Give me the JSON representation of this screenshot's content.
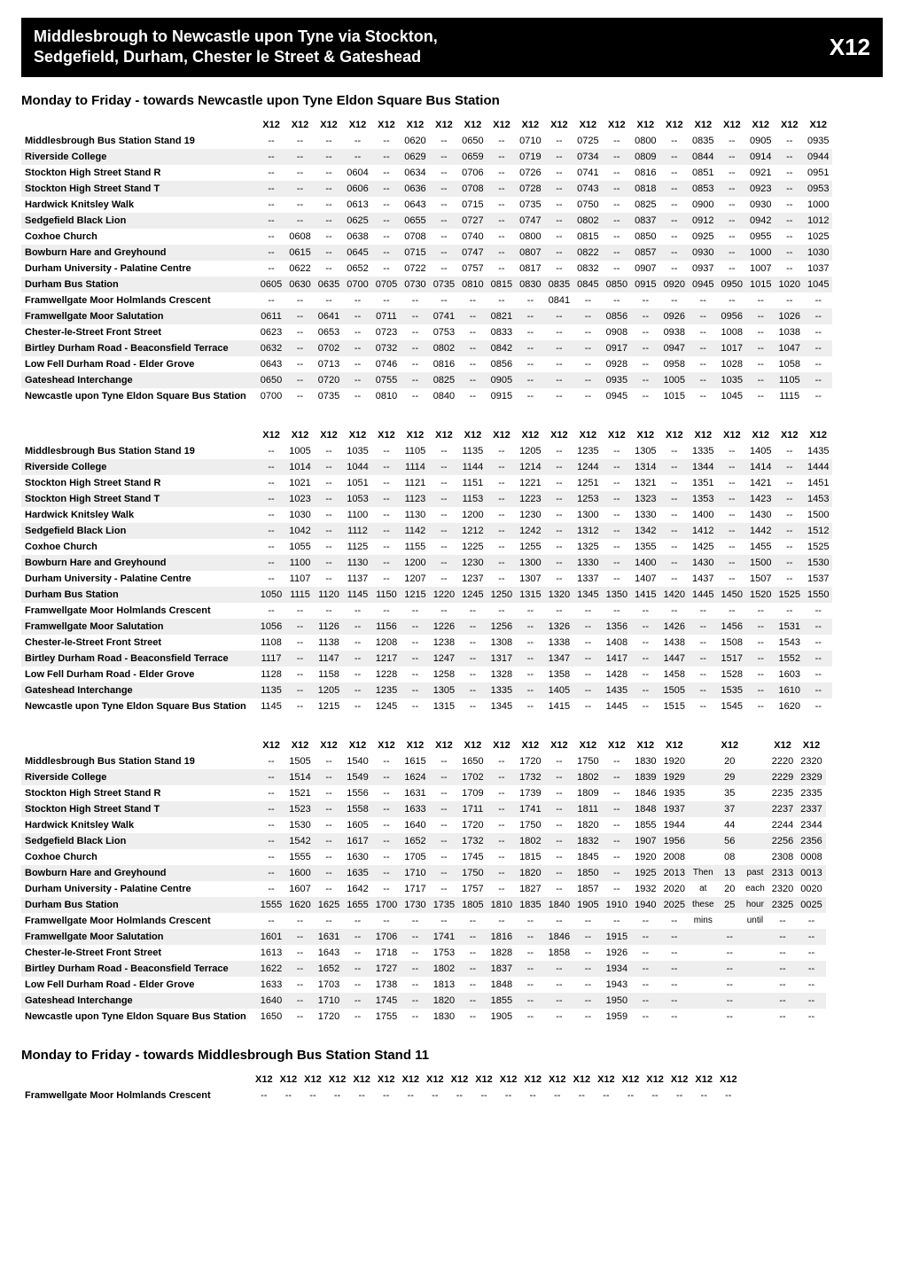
{
  "header": {
    "title_line1": "Middlesbrough to Newcastle upon Tyne via Stockton,",
    "title_line2": "Sedgefield, Durham, Chester le Street & Gateshead",
    "route": "X12"
  },
  "section1_title": "Monday to Friday - towards Newcastle upon Tyne Eldon Square Bus Station",
  "section2_title": "Monday to Friday - towards Middlesbrough Bus Station Stand 11",
  "stops": [
    "Middlesbrough Bus Station Stand 19",
    "Riverside College",
    "Stockton High Street Stand R",
    "Stockton High Street Stand T",
    "Hardwick Knitsley Walk",
    "Sedgefield Black Lion",
    "Coxhoe Church",
    "Bowburn Hare and Greyhound",
    "Durham University - Palatine Centre",
    "Durham Bus Station",
    "Framwellgate Moor Holmlands Crescent",
    "Framwellgate Moor Salutation",
    "Chester-le-Street Front Street",
    "Birtley Durham Road - Beaconsfield Terrace",
    "Low Fell Durham Road - Elder Grove",
    "Gateshead Interchange",
    "Newcastle upon Tyne Eldon Square Bus Station"
  ],
  "block1": {
    "headers": [
      "X12",
      "X12",
      "X12",
      "X12",
      "X12",
      "X12",
      "X12",
      "X12",
      "X12",
      "X12",
      "X12",
      "X12",
      "X12",
      "X12",
      "X12",
      "X12",
      "X12",
      "X12",
      "X12",
      "X12"
    ],
    "rows": [
      [
        "--",
        "--",
        "--",
        "--",
        "--",
        "0620",
        "--",
        "0650",
        "--",
        "0710",
        "--",
        "0725",
        "--",
        "0800",
        "--",
        "0835",
        "--",
        "0905",
        "--",
        "0935"
      ],
      [
        "--",
        "--",
        "--",
        "--",
        "--",
        "0629",
        "--",
        "0659",
        "--",
        "0719",
        "--",
        "0734",
        "--",
        "0809",
        "--",
        "0844",
        "--",
        "0914",
        "--",
        "0944"
      ],
      [
        "--",
        "--",
        "--",
        "0604",
        "--",
        "0634",
        "--",
        "0706",
        "--",
        "0726",
        "--",
        "0741",
        "--",
        "0816",
        "--",
        "0851",
        "--",
        "0921",
        "--",
        "0951"
      ],
      [
        "--",
        "--",
        "--",
        "0606",
        "--",
        "0636",
        "--",
        "0708",
        "--",
        "0728",
        "--",
        "0743",
        "--",
        "0818",
        "--",
        "0853",
        "--",
        "0923",
        "--",
        "0953"
      ],
      [
        "--",
        "--",
        "--",
        "0613",
        "--",
        "0643",
        "--",
        "0715",
        "--",
        "0735",
        "--",
        "0750",
        "--",
        "0825",
        "--",
        "0900",
        "--",
        "0930",
        "--",
        "1000"
      ],
      [
        "--",
        "--",
        "--",
        "0625",
        "--",
        "0655",
        "--",
        "0727",
        "--",
        "0747",
        "--",
        "0802",
        "--",
        "0837",
        "--",
        "0912",
        "--",
        "0942",
        "--",
        "1012"
      ],
      [
        "--",
        "0608",
        "--",
        "0638",
        "--",
        "0708",
        "--",
        "0740",
        "--",
        "0800",
        "--",
        "0815",
        "--",
        "0850",
        "--",
        "0925",
        "--",
        "0955",
        "--",
        "1025"
      ],
      [
        "--",
        "0615",
        "--",
        "0645",
        "--",
        "0715",
        "--",
        "0747",
        "--",
        "0807",
        "--",
        "0822",
        "--",
        "0857",
        "--",
        "0930",
        "--",
        "1000",
        "--",
        "1030"
      ],
      [
        "--",
        "0622",
        "--",
        "0652",
        "--",
        "0722",
        "--",
        "0757",
        "--",
        "0817",
        "--",
        "0832",
        "--",
        "0907",
        "--",
        "0937",
        "--",
        "1007",
        "--",
        "1037"
      ],
      [
        "0605",
        "0630",
        "0635",
        "0700",
        "0705",
        "0730",
        "0735",
        "0810",
        "0815",
        "0830",
        "0835",
        "0845",
        "0850",
        "0915",
        "0920",
        "0945",
        "0950",
        "1015",
        "1020",
        "1045"
      ],
      [
        "--",
        "--",
        "--",
        "--",
        "--",
        "--",
        "--",
        "--",
        "--",
        "--",
        "0841",
        "--",
        "--",
        "--",
        "--",
        "--",
        "--",
        "--",
        "--",
        "--"
      ],
      [
        "0611",
        "--",
        "0641",
        "--",
        "0711",
        "--",
        "0741",
        "--",
        "0821",
        "--",
        "--",
        "--",
        "0856",
        "--",
        "0926",
        "--",
        "0956",
        "--",
        "1026",
        "--"
      ],
      [
        "0623",
        "--",
        "0653",
        "--",
        "0723",
        "--",
        "0753",
        "--",
        "0833",
        "--",
        "--",
        "--",
        "0908",
        "--",
        "0938",
        "--",
        "1008",
        "--",
        "1038",
        "--"
      ],
      [
        "0632",
        "--",
        "0702",
        "--",
        "0732",
        "--",
        "0802",
        "--",
        "0842",
        "--",
        "--",
        "--",
        "0917",
        "--",
        "0947",
        "--",
        "1017",
        "--",
        "1047",
        "--"
      ],
      [
        "0643",
        "--",
        "0713",
        "--",
        "0746",
        "--",
        "0816",
        "--",
        "0856",
        "--",
        "--",
        "--",
        "0928",
        "--",
        "0958",
        "--",
        "1028",
        "--",
        "1058",
        "--"
      ],
      [
        "0650",
        "--",
        "0720",
        "--",
        "0755",
        "--",
        "0825",
        "--",
        "0905",
        "--",
        "--",
        "--",
        "0935",
        "--",
        "1005",
        "--",
        "1035",
        "--",
        "1105",
        "--"
      ],
      [
        "0700",
        "--",
        "0735",
        "--",
        "0810",
        "--",
        "0840",
        "--",
        "0915",
        "--",
        "--",
        "--",
        "0945",
        "--",
        "1015",
        "--",
        "1045",
        "--",
        "1115",
        "--"
      ]
    ],
    "firstColSuffix": [
      "",
      "",
      "",
      "",
      "",
      "",
      "",
      "",
      "",
      "",
      "",
      "",
      "",
      "",
      "",
      "",
      "0700"
    ]
  },
  "block2": {
    "headers": [
      "X12",
      "X12",
      "X12",
      "X12",
      "X12",
      "X12",
      "X12",
      "X12",
      "X12",
      "X12",
      "X12",
      "X12",
      "X12",
      "X12",
      "X12",
      "X12",
      "X12",
      "X12",
      "X12",
      "X12"
    ],
    "rows": [
      [
        "--",
        "1005",
        "--",
        "1035",
        "--",
        "1105",
        "--",
        "1135",
        "--",
        "1205",
        "--",
        "1235",
        "--",
        "1305",
        "--",
        "1335",
        "--",
        "1405",
        "--",
        "1435"
      ],
      [
        "--",
        "1014",
        "--",
        "1044",
        "--",
        "1114",
        "--",
        "1144",
        "--",
        "1214",
        "--",
        "1244",
        "--",
        "1314",
        "--",
        "1344",
        "--",
        "1414",
        "--",
        "1444"
      ],
      [
        "--",
        "1021",
        "--",
        "1051",
        "--",
        "1121",
        "--",
        "1151",
        "--",
        "1221",
        "--",
        "1251",
        "--",
        "1321",
        "--",
        "1351",
        "--",
        "1421",
        "--",
        "1451"
      ],
      [
        "--",
        "1023",
        "--",
        "1053",
        "--",
        "1123",
        "--",
        "1153",
        "--",
        "1223",
        "--",
        "1253",
        "--",
        "1323",
        "--",
        "1353",
        "--",
        "1423",
        "--",
        "1453"
      ],
      [
        "--",
        "1030",
        "--",
        "1100",
        "--",
        "1130",
        "--",
        "1200",
        "--",
        "1230",
        "--",
        "1300",
        "--",
        "1330",
        "--",
        "1400",
        "--",
        "1430",
        "--",
        "1500"
      ],
      [
        "--",
        "1042",
        "--",
        "1112",
        "--",
        "1142",
        "--",
        "1212",
        "--",
        "1242",
        "--",
        "1312",
        "--",
        "1342",
        "--",
        "1412",
        "--",
        "1442",
        "--",
        "1512"
      ],
      [
        "--",
        "1055",
        "--",
        "1125",
        "--",
        "1155",
        "--",
        "1225",
        "--",
        "1255",
        "--",
        "1325",
        "--",
        "1355",
        "--",
        "1425",
        "--",
        "1455",
        "--",
        "1525"
      ],
      [
        "--",
        "1100",
        "--",
        "1130",
        "--",
        "1200",
        "--",
        "1230",
        "--",
        "1300",
        "--",
        "1330",
        "--",
        "1400",
        "--",
        "1430",
        "--",
        "1500",
        "--",
        "1530"
      ],
      [
        "--",
        "1107",
        "--",
        "1137",
        "--",
        "1207",
        "--",
        "1237",
        "--",
        "1307",
        "--",
        "1337",
        "--",
        "1407",
        "--",
        "1437",
        "--",
        "1507",
        "--",
        "1537"
      ],
      [
        "1050",
        "1115",
        "1120",
        "1145",
        "1150",
        "1215",
        "1220",
        "1245",
        "1250",
        "1315",
        "1320",
        "1345",
        "1350",
        "1415",
        "1420",
        "1445",
        "1450",
        "1520",
        "1525",
        "1550"
      ],
      [
        "--",
        "--",
        "--",
        "--",
        "--",
        "--",
        "--",
        "--",
        "--",
        "--",
        "--",
        "--",
        "--",
        "--",
        "--",
        "--",
        "--",
        "--",
        "--",
        "--"
      ],
      [
        "1056",
        "--",
        "1126",
        "--",
        "1156",
        "--",
        "1226",
        "--",
        "1256",
        "--",
        "1326",
        "--",
        "1356",
        "--",
        "1426",
        "--",
        "1456",
        "--",
        "1531",
        "--"
      ],
      [
        "1108",
        "--",
        "1138",
        "--",
        "1208",
        "--",
        "1238",
        "--",
        "1308",
        "--",
        "1338",
        "--",
        "1408",
        "--",
        "1438",
        "--",
        "1508",
        "--",
        "1543",
        "--"
      ],
      [
        "1117",
        "--",
        "1147",
        "--",
        "1217",
        "--",
        "1247",
        "--",
        "1317",
        "--",
        "1347",
        "--",
        "1417",
        "--",
        "1447",
        "--",
        "1517",
        "--",
        "1552",
        "--"
      ],
      [
        "1128",
        "--",
        "1158",
        "--",
        "1228",
        "--",
        "1258",
        "--",
        "1328",
        "--",
        "1358",
        "--",
        "1428",
        "--",
        "1458",
        "--",
        "1528",
        "--",
        "1603",
        "--"
      ],
      [
        "1135",
        "--",
        "1205",
        "--",
        "1235",
        "--",
        "1305",
        "--",
        "1335",
        "--",
        "1405",
        "--",
        "1435",
        "--",
        "1505",
        "--",
        "1535",
        "--",
        "1610",
        "--"
      ],
      [
        "1145",
        "--",
        "1215",
        "--",
        "1245",
        "--",
        "1315",
        "--",
        "1345",
        "--",
        "1415",
        "--",
        "1445",
        "--",
        "1515",
        "--",
        "1545",
        "--",
        "1620",
        "--"
      ]
    ],
    "firstColSuffix": [
      "",
      "",
      "",
      "",
      "",
      "",
      "",
      "",
      "",
      "",
      "",
      "",
      "",
      "",
      "",
      "",
      "1145"
    ]
  },
  "block3": {
    "headers": [
      "X12",
      "X12",
      "X12",
      "X12",
      "X12",
      "X12",
      "X12",
      "X12",
      "X12",
      "X12",
      "X12",
      "X12",
      "X12",
      "X12",
      "X12",
      "",
      "X12",
      "",
      "X12",
      "X12"
    ],
    "rows": [
      [
        "--",
        "1505",
        "--",
        "1540",
        "--",
        "1615",
        "--",
        "1650",
        "--",
        "1720",
        "--",
        "1750",
        "--",
        "1830",
        "1920",
        "",
        "20",
        "",
        "2220",
        "2320"
      ],
      [
        "--",
        "1514",
        "--",
        "1549",
        "--",
        "1624",
        "--",
        "1702",
        "--",
        "1732",
        "--",
        "1802",
        "--",
        "1839",
        "1929",
        "",
        "29",
        "",
        "2229",
        "2329"
      ],
      [
        "--",
        "1521",
        "--",
        "1556",
        "--",
        "1631",
        "--",
        "1709",
        "--",
        "1739",
        "--",
        "1809",
        "--",
        "1846",
        "1935",
        "",
        "35",
        "",
        "2235",
        "2335"
      ],
      [
        "--",
        "1523",
        "--",
        "1558",
        "--",
        "1633",
        "--",
        "1711",
        "--",
        "1741",
        "--",
        "1811",
        "--",
        "1848",
        "1937",
        "",
        "37",
        "",
        "2237",
        "2337"
      ],
      [
        "--",
        "1530",
        "--",
        "1605",
        "--",
        "1640",
        "--",
        "1720",
        "--",
        "1750",
        "--",
        "1820",
        "--",
        "1855",
        "1944",
        "",
        "44",
        "",
        "2244",
        "2344"
      ],
      [
        "--",
        "1542",
        "--",
        "1617",
        "--",
        "1652",
        "--",
        "1732",
        "--",
        "1802",
        "--",
        "1832",
        "--",
        "1907",
        "1956",
        "",
        "56",
        "",
        "2256",
        "2356"
      ],
      [
        "--",
        "1555",
        "--",
        "1630",
        "--",
        "1705",
        "--",
        "1745",
        "--",
        "1815",
        "--",
        "1845",
        "--",
        "1920",
        "2008",
        "",
        "08",
        "",
        "2308",
        "0008"
      ],
      [
        "--",
        "1600",
        "--",
        "1635",
        "--",
        "1710",
        "--",
        "1750",
        "--",
        "1820",
        "--",
        "1850",
        "--",
        "1925",
        "2013",
        "Then",
        "13",
        "past",
        "2313",
        "0013"
      ],
      [
        "--",
        "1607",
        "--",
        "1642",
        "--",
        "1717",
        "--",
        "1757",
        "--",
        "1827",
        "--",
        "1857",
        "--",
        "1932",
        "2020",
        "at",
        "20",
        "each",
        "2320",
        "0020"
      ],
      [
        "1555",
        "1620",
        "1625",
        "1655",
        "1700",
        "1730",
        "1735",
        "1805",
        "1810",
        "1835",
        "1840",
        "1905",
        "1910",
        "1940",
        "2025",
        "these",
        "25",
        "hour",
        "2325",
        "0025"
      ],
      [
        "--",
        "--",
        "--",
        "--",
        "--",
        "--",
        "--",
        "--",
        "--",
        "--",
        "--",
        "--",
        "--",
        "--",
        "--",
        "mins",
        "",
        "until",
        "--",
        "--"
      ],
      [
        "1601",
        "--",
        "1631",
        "--",
        "1706",
        "--",
        "1741",
        "--",
        "1816",
        "--",
        "1846",
        "--",
        "1915",
        "--",
        "--",
        "",
        "--",
        "",
        "--",
        "--"
      ],
      [
        "1613",
        "--",
        "1643",
        "--",
        "1718",
        "--",
        "1753",
        "--",
        "1828",
        "--",
        "1858",
        "--",
        "1926",
        "--",
        "--",
        "",
        "--",
        "",
        "--",
        "--"
      ],
      [
        "1622",
        "--",
        "1652",
        "--",
        "1727",
        "--",
        "1802",
        "--",
        "1837",
        "--",
        "--",
        "--",
        "1934",
        "--",
        "--",
        "",
        "--",
        "",
        "--",
        "--"
      ],
      [
        "1633",
        "--",
        "1703",
        "--",
        "1738",
        "--",
        "1813",
        "--",
        "1848",
        "--",
        "--",
        "--",
        "1943",
        "--",
        "--",
        "",
        "--",
        "",
        "--",
        "--"
      ],
      [
        "1640",
        "--",
        "1710",
        "--",
        "1745",
        "--",
        "1820",
        "--",
        "1855",
        "--",
        "--",
        "--",
        "1950",
        "--",
        "--",
        "",
        "--",
        "",
        "--",
        "--"
      ],
      [
        "1650",
        "--",
        "1720",
        "--",
        "1755",
        "--",
        "1830",
        "--",
        "1905",
        "--",
        "--",
        "--",
        "1959",
        "--",
        "--",
        "",
        "--",
        "",
        "--",
        "--"
      ]
    ],
    "firstColSuffix": [
      "",
      "",
      "",
      "",
      "",
      "",
      "",
      "",
      "",
      "",
      "",
      "",
      "",
      "",
      "",
      "",
      "1650"
    ],
    "noteCols": [
      15,
      17
    ]
  },
  "block4": {
    "stops": [
      "Framwellgate Moor Holmlands Crescent"
    ],
    "headers": [
      "X12",
      "X12",
      "X12",
      "X12",
      "X12",
      "X12",
      "X12",
      "X12",
      "X12",
      "X12",
      "X12",
      "X12",
      "X12",
      "X12",
      "X12",
      "X12",
      "X12",
      "X12",
      "X12",
      "X12"
    ],
    "rows": [
      [
        "--",
        "--",
        "--",
        "--",
        "--",
        "--",
        "--",
        "--",
        "--",
        "--",
        "--",
        "--",
        "--",
        "--",
        "--",
        "--",
        "--",
        "--",
        "--",
        "--"
      ]
    ]
  },
  "style": {
    "shadeRows": [
      1,
      3,
      5,
      7,
      9,
      11,
      13,
      15
    ],
    "bg": "#ffffff",
    "shade": "#eeeeee",
    "fontSize": 11
  }
}
